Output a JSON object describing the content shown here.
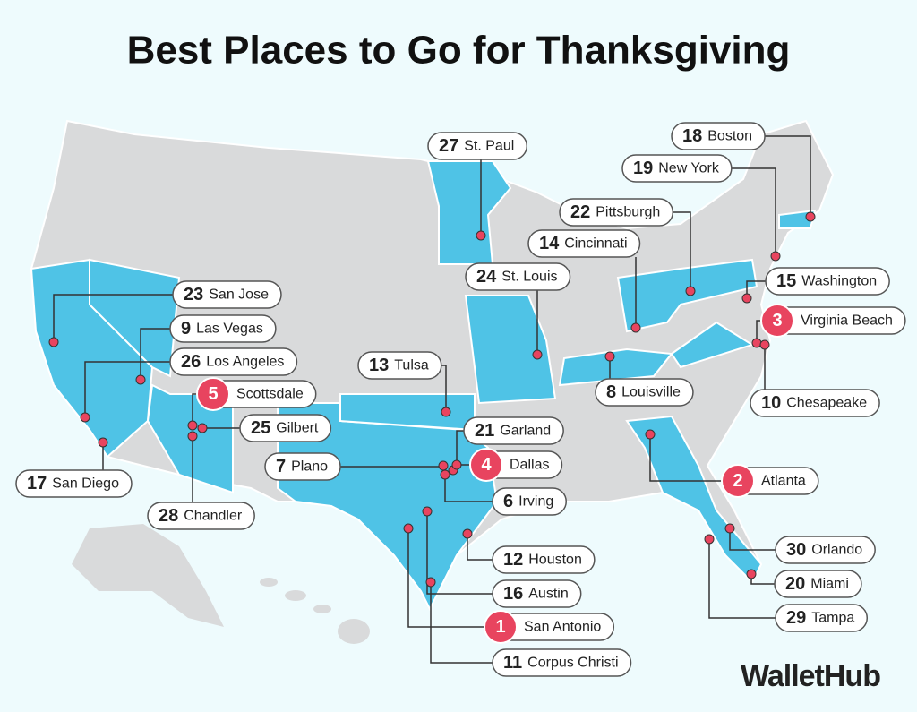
{
  "title": "Best Places to Go for Thanksgiving",
  "places": [
    {
      "rank": 1,
      "city": "San Antonio"
    },
    {
      "rank": 2,
      "city": "Atlanta"
    },
    {
      "rank": 3,
      "city": "Virginia Beach"
    },
    {
      "rank": 4,
      "city": "Dallas"
    },
    {
      "rank": 5,
      "city": "Scottsdale"
    },
    {
      "rank": 6,
      "city": "Irving"
    },
    {
      "rank": 7,
      "city": "Plano"
    },
    {
      "rank": 8,
      "city": "Louisville"
    },
    {
      "rank": 9,
      "city": "Las Vegas"
    },
    {
      "rank": 10,
      "city": "Chesapeake"
    },
    {
      "rank": 11,
      "city": "Corpus Christi"
    },
    {
      "rank": 12,
      "city": "Houston"
    },
    {
      "rank": 13,
      "city": "Tulsa"
    },
    {
      "rank": 14,
      "city": "Cincinnati"
    },
    {
      "rank": 15,
      "city": "Washington"
    },
    {
      "rank": 16,
      "city": "Austin"
    },
    {
      "rank": 17,
      "city": "San Diego"
    },
    {
      "rank": 18,
      "city": "Boston"
    },
    {
      "rank": 19,
      "city": "New York"
    },
    {
      "rank": 20,
      "city": "Miami"
    },
    {
      "rank": 21,
      "city": "Garland"
    },
    {
      "rank": 22,
      "city": "Pittsburgh"
    },
    {
      "rank": 23,
      "city": "San Jose"
    },
    {
      "rank": 24,
      "city": "St. Louis"
    },
    {
      "rank": 25,
      "city": "Gilbert"
    },
    {
      "rank": 26,
      "city": "Los Angeles"
    },
    {
      "rank": 27,
      "city": "St. Paul"
    },
    {
      "rank": 28,
      "city": "Chandler"
    },
    {
      "rank": 29,
      "city": "Tampa"
    },
    {
      "rank": 30,
      "city": "Orlando"
    }
  ],
  "brand": "WalletHub"
}
